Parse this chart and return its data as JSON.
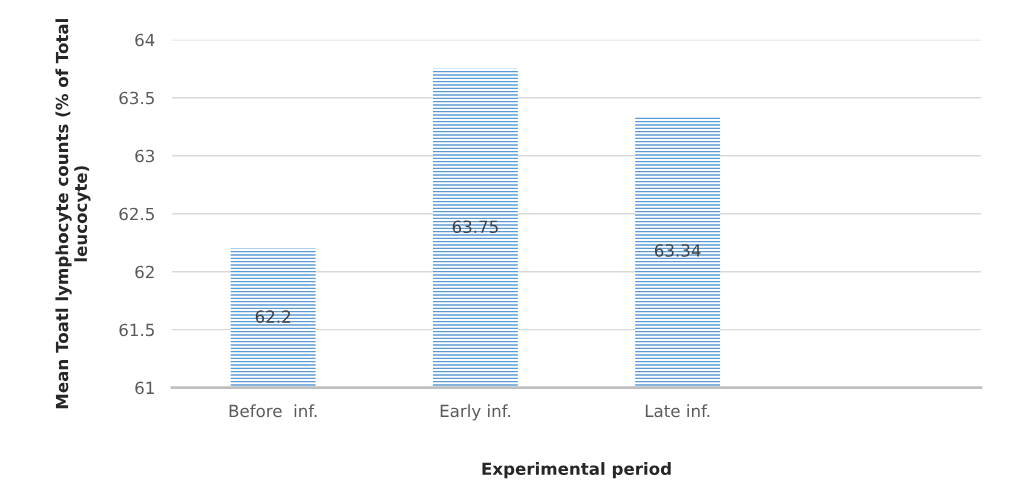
{
  "chart_data": {
    "type": "bar",
    "categories": [
      "Before  inf.",
      "Early inf.",
      "Late inf.",
      null
    ],
    "values": [
      62.2,
      63.75,
      63.34,
      null
    ],
    "color": "#5b9bd5",
    "xlabel": "Experimental period",
    "ylabel": "Mean Toatl lymphocyte counts (% of Total leucocyte)",
    "ylim": [
      61,
      64
    ],
    "yticks": [
      61,
      61.5,
      62,
      62.5,
      63,
      63.5,
      64
    ],
    "grid": "y",
    "data_labels": true
  }
}
